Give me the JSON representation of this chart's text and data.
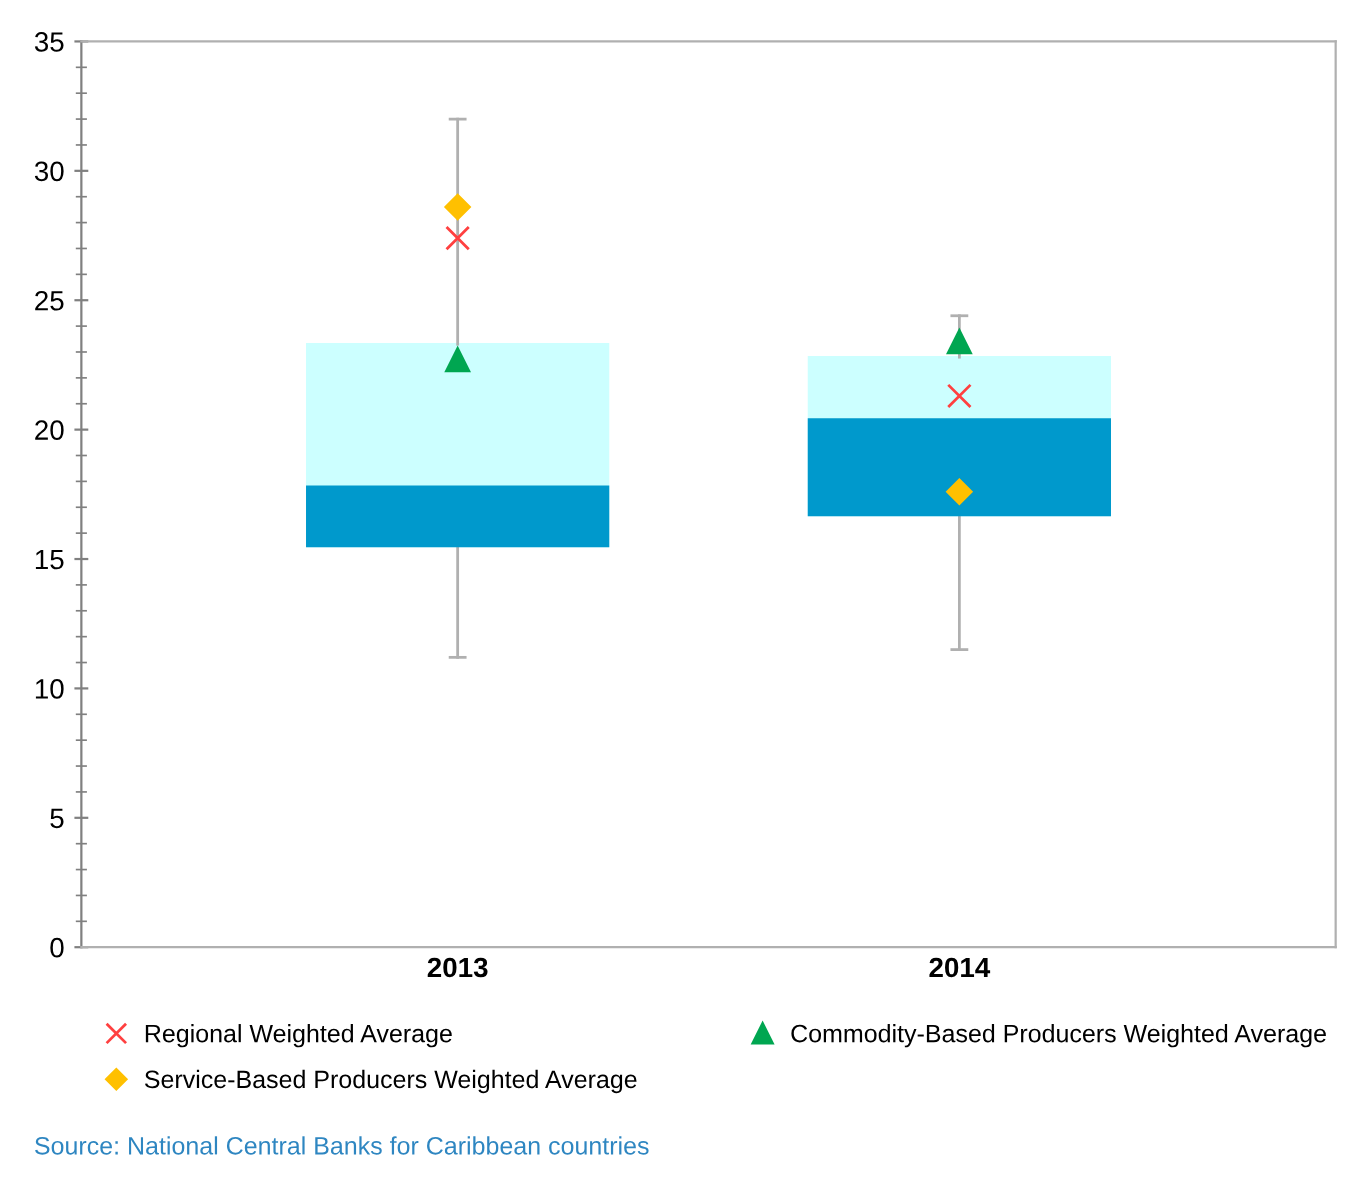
{
  "chart_data": {
    "type": "box",
    "categories": [
      "2013",
      "2014"
    ],
    "boxes": [
      {
        "low": 11.2,
        "q1": 15.5,
        "median": 17.8,
        "q3": 23.3,
        "high": 32.0
      },
      {
        "low": 11.5,
        "q1": 16.7,
        "median": 20.4,
        "q3": 22.8,
        "high": 24.4
      }
    ],
    "colors": [
      "#0099cc",
      "#ccffff"
    ],
    "series": [
      {
        "name": "Regional Weighted Average",
        "type": "scatter",
        "marker": "cross",
        "color": "#ff4040",
        "values": [
          27.4,
          21.3
        ]
      },
      {
        "name": "Commodity-Based Producers Weighted Average",
        "type": "scatter",
        "marker": "triangle",
        "color": "#00a651",
        "values": [
          22.7,
          23.4
        ]
      },
      {
        "name": "Service-Based Producers Weighted Average",
        "type": "scatter",
        "marker": "diamond",
        "color": "#ffc000",
        "values": [
          28.6,
          17.6
        ]
      }
    ],
    "ylim": [
      0,
      35
    ],
    "yticks": [
      0,
      5,
      10,
      15,
      20,
      25,
      30,
      35
    ],
    "grid": false,
    "legend": "bottom",
    "annotations": [
      "Source: National Central Banks for Caribbean countries"
    ]
  }
}
